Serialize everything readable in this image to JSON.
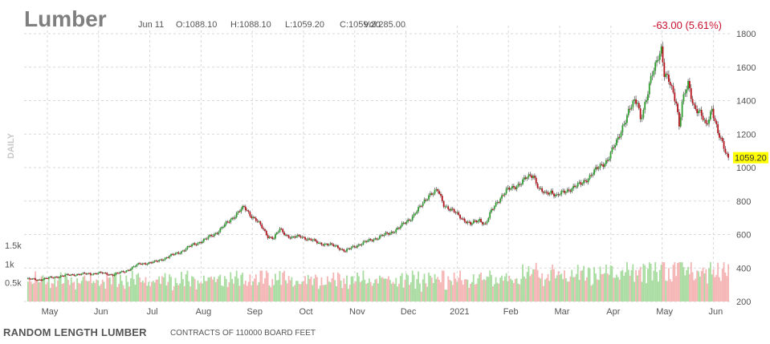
{
  "header": {
    "symbol": "Lumber",
    "date": "Jun 11",
    "open": "O:1088.10",
    "high": "H:1088.10",
    "low": "L:1059.20",
    "close": "C:1059.20",
    "volume": "Vol:285.00",
    "change": "-63.00 (5.61%)"
  },
  "sidebar_label": "DAILY",
  "footer": {
    "name": "RANDOM LENGTH LUMBER",
    "note": "CONTRACTS OF 110000 BOARD FEET"
  },
  "colors": {
    "up": "#2e9e2e",
    "down": "#b5121b",
    "volume_up": "#a8dca0",
    "volume_down": "#f5b5b5",
    "grid": "#d9d9d9",
    "last_price_bg": "#ffff00",
    "change": "#c8102e"
  },
  "chart_data": {
    "type": "candlestick",
    "x_labels": [
      "May",
      "Jun",
      "Jul",
      "Aug",
      "Sep",
      "Oct",
      "Nov",
      "Dec",
      "2021",
      "Feb",
      "Mar",
      "Apr",
      "May",
      "Jun"
    ],
    "y_price_ticks": [
      200,
      400,
      600,
      800,
      1000,
      1200,
      1400,
      1600,
      1800
    ],
    "y_volume_ticks": [
      "0.5k",
      "1k",
      "1.5k"
    ],
    "ylim": [
      200,
      1800
    ],
    "volume_ylim": [
      0,
      1500
    ],
    "last_price": "1059.20",
    "price_path": [
      [
        0,
        335
      ],
      [
        8,
        330
      ],
      [
        18,
        345
      ],
      [
        30,
        360
      ],
      [
        40,
        365
      ],
      [
        50,
        370
      ],
      [
        58,
        360
      ],
      [
        66,
        380
      ],
      [
        76,
        425
      ],
      [
        86,
        435
      ],
      [
        96,
        470
      ],
      [
        104,
        500
      ],
      [
        112,
        540
      ],
      [
        120,
        570
      ],
      [
        128,
        615
      ],
      [
        136,
        680
      ],
      [
        142,
        735
      ],
      [
        146,
        760
      ],
      [
        150,
        720
      ],
      [
        154,
        690
      ],
      [
        158,
        640
      ],
      [
        162,
        590
      ],
      [
        166,
        580
      ],
      [
        170,
        630
      ],
      [
        174,
        600
      ],
      [
        178,
        580
      ],
      [
        184,
        590
      ],
      [
        190,
        570
      ],
      [
        196,
        550
      ],
      [
        202,
        540
      ],
      [
        208,
        530
      ],
      [
        214,
        500
      ],
      [
        220,
        530
      ],
      [
        226,
        550
      ],
      [
        232,
        570
      ],
      [
        238,
        590
      ],
      [
        244,
        610
      ],
      [
        250,
        640
      ],
      [
        258,
        700
      ],
      [
        264,
        760
      ],
      [
        270,
        840
      ],
      [
        276,
        860
      ],
      [
        280,
        780
      ],
      [
        286,
        740
      ],
      [
        292,
        700
      ],
      [
        298,
        660
      ],
      [
        304,
        690
      ],
      [
        308,
        660
      ],
      [
        312,
        740
      ],
      [
        316,
        800
      ],
      [
        322,
        860
      ],
      [
        328,
        890
      ],
      [
        332,
        910
      ],
      [
        336,
        940
      ],
      [
        340,
        960
      ],
      [
        344,
        870
      ],
      [
        348,
        840
      ],
      [
        352,
        860
      ],
      [
        356,
        830
      ],
      [
        360,
        850
      ],
      [
        366,
        880
      ],
      [
        372,
        900
      ],
      [
        378,
        950
      ],
      [
        384,
        1000
      ],
      [
        390,
        1050
      ],
      [
        396,
        1150
      ],
      [
        400,
        1250
      ],
      [
        404,
        1330
      ],
      [
        408,
        1390
      ],
      [
        410,
        1400
      ],
      [
        412,
        1300
      ],
      [
        416,
        1400
      ],
      [
        420,
        1560
      ],
      [
        424,
        1680
      ],
      [
        426,
        1710
      ],
      [
        428,
        1550
      ],
      [
        432,
        1500
      ],
      [
        436,
        1400
      ],
      [
        438,
        1250
      ],
      [
        440,
        1380
      ],
      [
        444,
        1500
      ],
      [
        448,
        1370
      ],
      [
        452,
        1320
      ],
      [
        456,
        1250
      ],
      [
        460,
        1360
      ],
      [
        464,
        1200
      ],
      [
        468,
        1120
      ],
      [
        471,
        1059
      ]
    ]
  }
}
